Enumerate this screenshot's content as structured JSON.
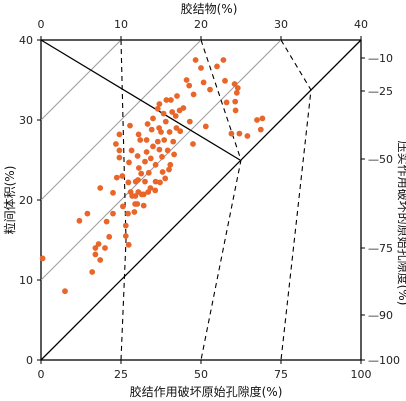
{
  "chart_data": {
    "type": "scatter",
    "top_axis": {
      "label": "胶结物(%)",
      "ticks": [
        "0",
        "10",
        "20",
        "30",
        "40"
      ]
    },
    "left_axis": {
      "label": "粒间体积(%)",
      "ticks": [
        "0",
        "10",
        "20",
        "30",
        "40"
      ],
      "range": [
        0,
        40
      ]
    },
    "bottom_axis": {
      "label": "胶结作用破坏原始孔隙度(%)",
      "ticks": [
        "0",
        "25",
        "50",
        "75",
        "100"
      ]
    },
    "right_axis": {
      "label": "压实作用破坏的原始孔隙度(%)",
      "ticks": [
        "10",
        "25",
        "50",
        "75",
        "90",
        "100"
      ]
    },
    "marker_color": "#e8662a",
    "line_color": "#000000",
    "guide_line_color": "#9a9a9a",
    "series": [
      {
        "points": [
          [
            0.5,
            12.7
          ],
          [
            7.5,
            8.6
          ],
          [
            12,
            17.4
          ],
          [
            14.5,
            18.3
          ],
          [
            16,
            11
          ],
          [
            17,
            14
          ],
          [
            17,
            13.2
          ],
          [
            18,
            14.5
          ],
          [
            18.5,
            12.5
          ],
          [
            18.5,
            21.5
          ],
          [
            20,
            14
          ],
          [
            20.5,
            17.3
          ],
          [
            21.3,
            15.4
          ],
          [
            22.5,
            18.3
          ],
          [
            22.5,
            20.9
          ],
          [
            23.7,
            22.8
          ],
          [
            23.4,
            27
          ],
          [
            24.5,
            28.2
          ],
          [
            24.5,
            26.2
          ],
          [
            24.5,
            25.3
          ],
          [
            25.4,
            23
          ],
          [
            25.6,
            19.2
          ],
          [
            26.5,
            16.8
          ],
          [
            27.2,
            18.3
          ],
          [
            26.5,
            15.5
          ],
          [
            27.4,
            14.4
          ],
          [
            27.3,
            22.2
          ],
          [
            27.5,
            24.7
          ],
          [
            28,
            21
          ],
          [
            28.3,
            26.2
          ],
          [
            27.8,
            29.3
          ],
          [
            28.5,
            20.5
          ],
          [
            29.5,
            20.5
          ],
          [
            29.4,
            19.5
          ],
          [
            29.2,
            18.5
          ],
          [
            29.6,
            22.3
          ],
          [
            30.1,
            19.5
          ],
          [
            30.4,
            21
          ],
          [
            30.3,
            22.5
          ],
          [
            30.6,
            24
          ],
          [
            30.2,
            25.5
          ],
          [
            30.5,
            28.2
          ],
          [
            31,
            27.5
          ],
          [
            31.3,
            23.3
          ],
          [
            31.5,
            20.7
          ],
          [
            32.1,
            20.7
          ],
          [
            32.1,
            19.3
          ],
          [
            32.5,
            22.3
          ],
          [
            32.5,
            24.8
          ],
          [
            33,
            27.5
          ],
          [
            33.3,
            29.5
          ],
          [
            33,
            26
          ],
          [
            33.5,
            21
          ],
          [
            33.7,
            23.4
          ],
          [
            34.2,
            21.5
          ],
          [
            34.3,
            25.2
          ],
          [
            34.6,
            28.8
          ],
          [
            35,
            26.7
          ],
          [
            35,
            30.2
          ],
          [
            35.8,
            22.3
          ],
          [
            35.8,
            24.4
          ],
          [
            35.7,
            21.2
          ],
          [
            36.5,
            27.3
          ],
          [
            36.5,
            31.4
          ],
          [
            36.9,
            29
          ],
          [
            37,
            26.3
          ],
          [
            37,
            32
          ],
          [
            37.2,
            22.2
          ],
          [
            37.5,
            28.5
          ],
          [
            37.8,
            25.4
          ],
          [
            38,
            23.5
          ],
          [
            38.3,
            30.8
          ],
          [
            38.5,
            27.5
          ],
          [
            38.8,
            22.7
          ],
          [
            39,
            29.8
          ],
          [
            39.2,
            32.5
          ],
          [
            39.6,
            26.2
          ],
          [
            40,
            23.8
          ],
          [
            40.2,
            28.5
          ],
          [
            40.4,
            24.4
          ],
          [
            40.6,
            32.5
          ],
          [
            41,
            31
          ],
          [
            41.3,
            27.3
          ],
          [
            41.6,
            25.7
          ],
          [
            42.1,
            30.5
          ],
          [
            42.3,
            29
          ],
          [
            42.5,
            33
          ],
          [
            43.3,
            31.2
          ],
          [
            43.5,
            28.6
          ],
          [
            44.5,
            31.5
          ],
          [
            45.5,
            35
          ],
          [
            46.3,
            34.3
          ],
          [
            46.5,
            29.8
          ],
          [
            47.5,
            27
          ],
          [
            47.7,
            33.2
          ],
          [
            48.3,
            37.5
          ],
          [
            50,
            36.5
          ],
          [
            50.8,
            34.7
          ],
          [
            51.5,
            29.2
          ],
          [
            52.8,
            33.8
          ],
          [
            55,
            36.7
          ],
          [
            57,
            37.5
          ],
          [
            57.5,
            34.9
          ],
          [
            58,
            32.2
          ],
          [
            59.5,
            28.3
          ],
          [
            60.5,
            34.5
          ],
          [
            60.7,
            32.3
          ],
          [
            60.8,
            31.2
          ],
          [
            61.5,
            34
          ],
          [
            61.2,
            33.4
          ],
          [
            62,
            28.3
          ],
          [
            64.5,
            28
          ],
          [
            67.5,
            30
          ],
          [
            68.7,
            28.8
          ],
          [
            69.2,
            30.2
          ]
        ]
      }
    ]
  }
}
